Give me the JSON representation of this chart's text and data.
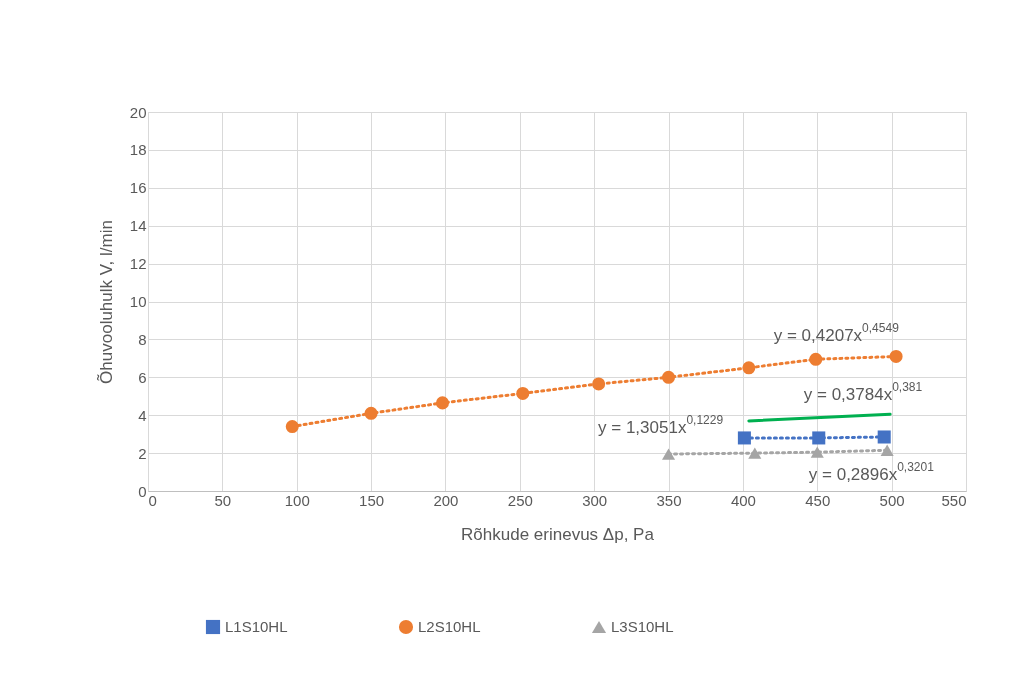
{
  "chart_data": {
    "type": "line",
    "xlabel": "Rõhkude erinevus Δp, Pa",
    "ylabel": "Õhuvooluhulk V, l/min",
    "series": [
      {
        "name": "L1S10HL",
        "color": "#4472c4",
        "marker": "square",
        "line_style": "dotted",
        "x": [
          401,
          451,
          495
        ],
        "values": [
          2.8,
          2.8,
          2.85
        ]
      },
      {
        "name": "L2S10HL",
        "color": "#ed7d31",
        "marker": "circle",
        "line_style": "dotted",
        "x": [
          97,
          150,
          198,
          252,
          303,
          350,
          404,
          449,
          503
        ],
        "values": [
          3.4,
          4.1,
          4.65,
          5.15,
          5.65,
          6.0,
          6.5,
          6.95,
          7.1
        ]
      },
      {
        "name": "L3S10HL",
        "color": "#a5a5a5",
        "marker": "triangle",
        "line_style": "dotted",
        "x": [
          350,
          408,
          450,
          497
        ],
        "values": [
          1.95,
          2.0,
          2.05,
          2.15
        ]
      },
      {
        "color": "#00b050",
        "marker": "none",
        "line_style": "solid",
        "x": [
          404,
          499
        ],
        "values": [
          3.7,
          4.05
        ]
      }
    ],
    "annotations": [
      "y = 0,4207x$^{0,4549}$",
      "y = 0,3784x$^{0,381}$",
      "y = 1,3051x$^{0,1229}$",
      "y = 0,2896x$^{0,3201}$"
    ],
    "xlim": [
      0,
      550
    ],
    "xticks": [
      0,
      50,
      100,
      150,
      200,
      250,
      300,
      350,
      400,
      450,
      500,
      550
    ],
    "ylim": [
      0,
      20
    ],
    "yticks": [
      0,
      2,
      4,
      6,
      8,
      10,
      12,
      14,
      16,
      18,
      20
    ],
    "grid": true,
    "legend": "bottom"
  }
}
